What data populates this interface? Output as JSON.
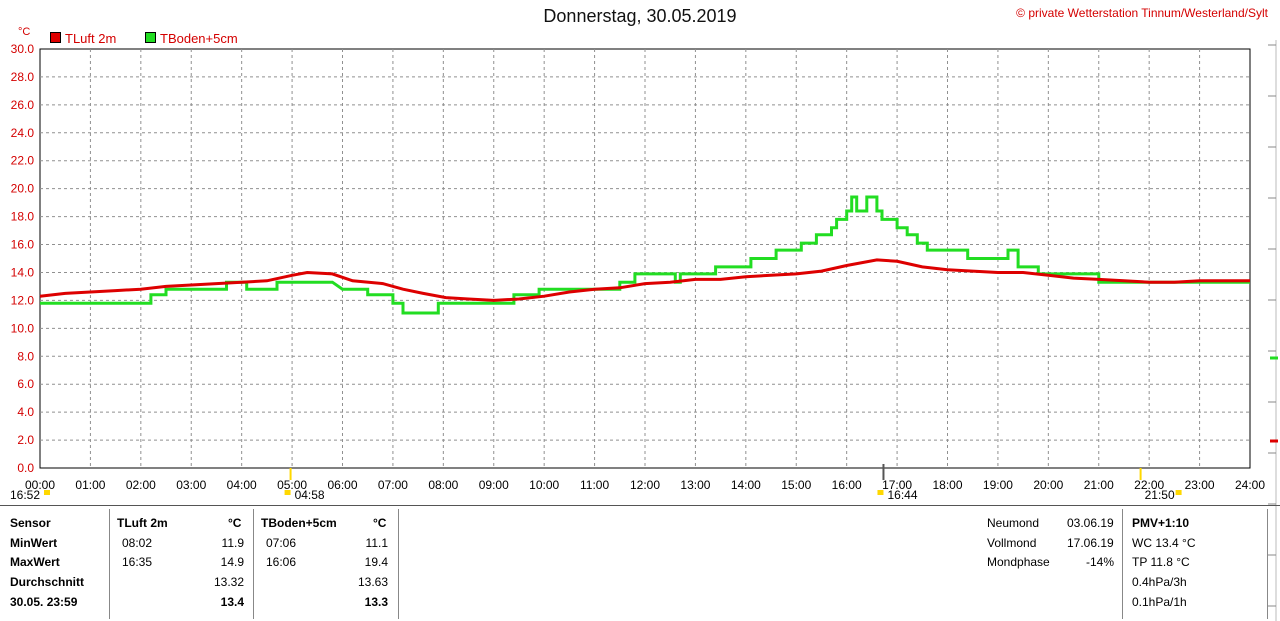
{
  "header": {
    "title": "Donnerstag, 30.05.2019",
    "copyright": "© private Wetterstation Tinnum/Westerland/Sylt"
  },
  "colors": {
    "tluft": "#dd0000",
    "tboden": "#22dd22",
    "grid": "#909090",
    "axis_text": "#d40000"
  },
  "chart_data": {
    "type": "line",
    "title": "Donnerstag, 30.05.2019",
    "ylabel": "°C",
    "xlabel": "",
    "xlim": [
      0,
      24
    ],
    "ylim": [
      0,
      30
    ],
    "grid": true,
    "legend_position": "top-left",
    "x_ticks": [
      "00:00",
      "01:00",
      "02:00",
      "03:00",
      "04:00",
      "05:00",
      "06:00",
      "07:00",
      "08:00",
      "09:00",
      "10:00",
      "11:00",
      "12:00",
      "13:00",
      "14:00",
      "15:00",
      "16:00",
      "17:00",
      "18:00",
      "19:00",
      "20:00",
      "21:00",
      "22:00",
      "23:00",
      "24:00"
    ],
    "y_ticks": [
      "0.0",
      "2.0",
      "4.0",
      "6.0",
      "8.0",
      "10.0",
      "12.0",
      "14.0",
      "16.0",
      "18.0",
      "20.0",
      "22.0",
      "24.0",
      "26.0",
      "28.0",
      "30.0"
    ],
    "series": [
      {
        "name": "TLuft 2m",
        "color": "#dd0000",
        "points": [
          [
            0,
            12.3
          ],
          [
            0.5,
            12.5
          ],
          [
            1,
            12.6
          ],
          [
            1.5,
            12.7
          ],
          [
            2,
            12.8
          ],
          [
            2.5,
            13.0
          ],
          [
            3,
            13.1
          ],
          [
            3.5,
            13.2
          ],
          [
            4,
            13.3
          ],
          [
            4.5,
            13.4
          ],
          [
            5,
            13.8
          ],
          [
            5.3,
            14.0
          ],
          [
            5.8,
            13.9
          ],
          [
            6.2,
            13.4
          ],
          [
            6.8,
            13.2
          ],
          [
            7.2,
            12.8
          ],
          [
            7.6,
            12.5
          ],
          [
            8.05,
            12.2
          ],
          [
            8.5,
            12.1
          ],
          [
            9,
            12.0
          ],
          [
            9.5,
            12.1
          ],
          [
            10,
            12.3
          ],
          [
            10.5,
            12.6
          ],
          [
            11,
            12.8
          ],
          [
            11.5,
            12.9
          ],
          [
            12,
            13.2
          ],
          [
            12.5,
            13.3
          ],
          [
            13,
            13.5
          ],
          [
            13.5,
            13.5
          ],
          [
            14,
            13.7
          ],
          [
            14.5,
            13.8
          ],
          [
            15,
            13.9
          ],
          [
            15.5,
            14.1
          ],
          [
            16,
            14.5
          ],
          [
            16.6,
            14.9
          ],
          [
            17,
            14.8
          ],
          [
            17.5,
            14.4
          ],
          [
            18,
            14.2
          ],
          [
            18.5,
            14.1
          ],
          [
            19,
            14.0
          ],
          [
            19.5,
            14.0
          ],
          [
            20,
            13.8
          ],
          [
            20.5,
            13.6
          ],
          [
            21,
            13.5
          ],
          [
            21.5,
            13.4
          ],
          [
            22,
            13.3
          ],
          [
            22.5,
            13.3
          ],
          [
            23,
            13.4
          ],
          [
            24,
            13.4
          ]
        ]
      },
      {
        "name": "TBoden+5cm",
        "color": "#22dd22",
        "points": [
          [
            0,
            11.8
          ],
          [
            2.2,
            11.8
          ],
          [
            2.2,
            12.4
          ],
          [
            2.5,
            12.4
          ],
          [
            2.5,
            12.8
          ],
          [
            3.7,
            12.8
          ],
          [
            3.7,
            13.3
          ],
          [
            4.1,
            13.3
          ],
          [
            4.1,
            12.8
          ],
          [
            4.7,
            12.8
          ],
          [
            4.7,
            13.3
          ],
          [
            5.5,
            13.3
          ],
          [
            5.8,
            13.3
          ],
          [
            6,
            12.8
          ],
          [
            6.5,
            12.8
          ],
          [
            6.5,
            12.4
          ],
          [
            7,
            12.4
          ],
          [
            7,
            11.8
          ],
          [
            7.2,
            11.8
          ],
          [
            7.2,
            11.1
          ],
          [
            7.9,
            11.1
          ],
          [
            7.9,
            11.8
          ],
          [
            9.4,
            11.8
          ],
          [
            9.4,
            12.4
          ],
          [
            9.9,
            12.4
          ],
          [
            9.9,
            12.8
          ],
          [
            11.5,
            12.8
          ],
          [
            11.5,
            13.3
          ],
          [
            11.8,
            13.3
          ],
          [
            11.8,
            13.9
          ],
          [
            12.6,
            13.9
          ],
          [
            12.6,
            13.3
          ],
          [
            12.7,
            13.3
          ],
          [
            12.7,
            13.9
          ],
          [
            13.4,
            13.9
          ],
          [
            13.4,
            14.4
          ],
          [
            14.1,
            14.4
          ],
          [
            14.1,
            15.0
          ],
          [
            14.6,
            15.0
          ],
          [
            14.6,
            15.6
          ],
          [
            15.1,
            15.6
          ],
          [
            15.1,
            16.1
          ],
          [
            15.4,
            16.1
          ],
          [
            15.4,
            16.7
          ],
          [
            15.7,
            16.7
          ],
          [
            15.7,
            17.2
          ],
          [
            15.8,
            17.2
          ],
          [
            15.8,
            17.8
          ],
          [
            16.0,
            17.8
          ],
          [
            16.0,
            18.4
          ],
          [
            16.1,
            18.4
          ],
          [
            16.1,
            19.4
          ],
          [
            16.2,
            19.4
          ],
          [
            16.2,
            18.4
          ],
          [
            16.4,
            18.4
          ],
          [
            16.4,
            19.4
          ],
          [
            16.6,
            19.4
          ],
          [
            16.6,
            18.4
          ],
          [
            16.7,
            18.4
          ],
          [
            16.7,
            17.8
          ],
          [
            17.0,
            17.8
          ],
          [
            17.0,
            17.2
          ],
          [
            17.2,
            17.2
          ],
          [
            17.2,
            16.7
          ],
          [
            17.4,
            16.7
          ],
          [
            17.4,
            16.1
          ],
          [
            17.6,
            16.1
          ],
          [
            17.6,
            15.6
          ],
          [
            18.4,
            15.6
          ],
          [
            18.4,
            15.0
          ],
          [
            19.2,
            15.0
          ],
          [
            19.2,
            15.6
          ],
          [
            19.4,
            15.6
          ],
          [
            19.4,
            14.4
          ],
          [
            19.8,
            14.4
          ],
          [
            19.8,
            13.9
          ],
          [
            21.0,
            13.9
          ],
          [
            21.0,
            13.3
          ],
          [
            24,
            13.3
          ]
        ]
      }
    ],
    "markers": [
      {
        "time": "16:52",
        "position": 0.0
      },
      {
        "time": "04:58",
        "position": 4.97
      },
      {
        "time": "16:44",
        "position": 16.73
      },
      {
        "time": "21:50",
        "position": 21.83
      }
    ]
  },
  "legend": {
    "tluft": "TLuft 2m",
    "tboden": "TBoden+5cm"
  },
  "table": {
    "sensor_label": "Sensor",
    "min_label": "MinWert",
    "max_label": "MaxWert",
    "avg_label": "Durchschnitt",
    "current_label": "30.05. 23:59",
    "unit": "°C",
    "tluft": {
      "header": "TLuft 2m",
      "min_time": "08:02",
      "min": "11.9",
      "max_time": "16:35",
      "max": "14.9",
      "avg": "13.32",
      "current": "13.4"
    },
    "tboden": {
      "header": "TBoden+5cm",
      "min_time": "07:06",
      "min": "11.1",
      "max_time": "16:06",
      "max": "19.4",
      "avg": "13.63",
      "current": "13.3"
    }
  },
  "moon": {
    "neumond_label": "Neumond",
    "neumond": "03.06.19",
    "vollmond_label": "Vollmond",
    "vollmond": "17.06.19",
    "phase_label": "Mondphase",
    "phase": "-14%"
  },
  "pmv": {
    "title": "PMV+1:10",
    "wc": "WC 13.4 °C",
    "tp": "TP 11.8 °C",
    "p3h": "0.4hPa/3h",
    "p1h": "0.1hPa/1h"
  }
}
